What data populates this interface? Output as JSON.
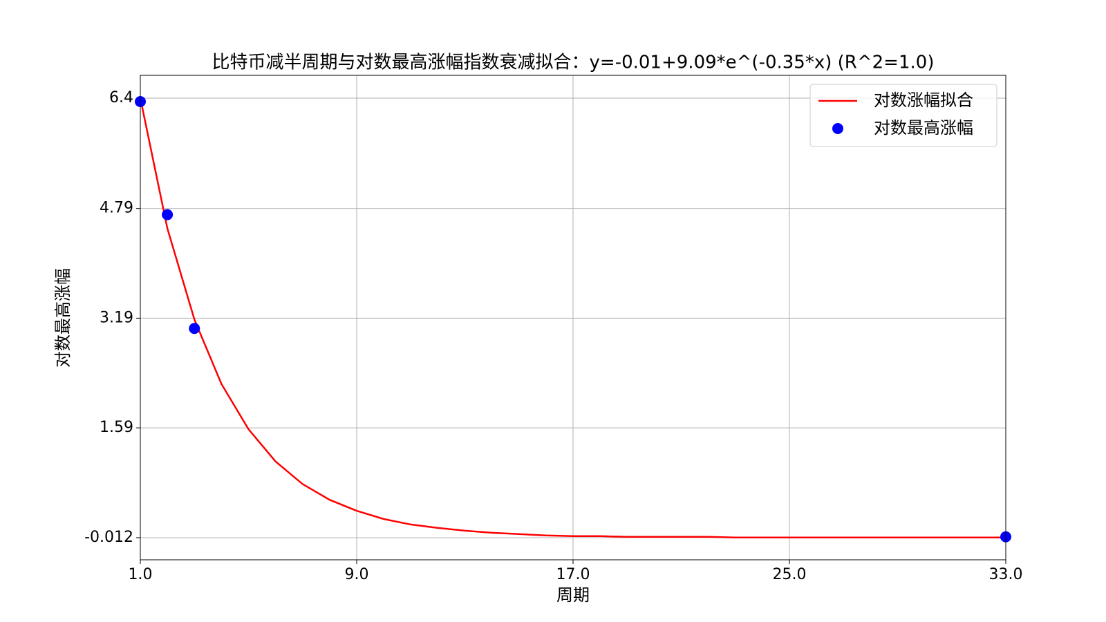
{
  "chart_data": {
    "type": "line_scatter",
    "title": "比特币减半周期与对数最高涨幅指数衰减拟合：y=-0.01+9.09*e^(-0.35*x) (R^2=1.0)",
    "xlabel": "周期",
    "ylabel": "对数最高涨幅",
    "xlim": [
      1,
      33
    ],
    "ylim": [
      -0.335,
      6.733
    ],
    "xticks": [
      {
        "value": 1,
        "label": "1.0"
      },
      {
        "value": 9,
        "label": "9.0"
      },
      {
        "value": 17,
        "label": "17.0"
      },
      {
        "value": 25,
        "label": "25.0"
      },
      {
        "value": 33,
        "label": "33.0"
      }
    ],
    "yticks": [
      -0.012,
      1.59,
      3.19,
      4.79,
      6.4
    ],
    "grid": true,
    "legend": "upper right",
    "line": {
      "name": "对数涨幅拟合",
      "color": "#ff0000",
      "x": [
        1,
        2,
        3,
        4,
        5,
        6,
        7,
        8,
        9,
        10,
        11,
        12,
        13,
        14,
        15,
        16,
        17,
        18,
        19,
        20,
        21,
        22,
        23,
        24,
        25,
        26,
        27,
        28,
        29,
        30,
        31,
        32,
        33
      ],
      "values": [
        6.4,
        4.5,
        3.17,
        2.23,
        1.57,
        1.1,
        0.77,
        0.54,
        0.38,
        0.26,
        0.18,
        0.13,
        0.09,
        0.06,
        0.04,
        0.02,
        0.01,
        0.01,
        0.0,
        0.0,
        0.0,
        0.0,
        -0.01,
        -0.01,
        -0.01,
        -0.01,
        -0.01,
        -0.01,
        -0.01,
        -0.01,
        -0.01,
        -0.01,
        -0.01
      ]
    },
    "scatter": {
      "name": "对数最高涨幅",
      "color": "#0000ff",
      "x": [
        1,
        2,
        3,
        33
      ],
      "values": [
        6.35,
        4.7,
        3.04,
        0.0
      ]
    }
  }
}
